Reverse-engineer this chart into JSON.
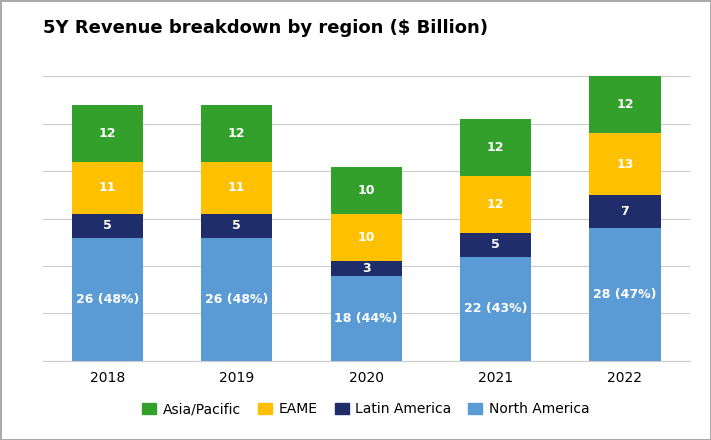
{
  "title": "5Y Revenue breakdown by region ($ Billion)",
  "years": [
    "2018",
    "2019",
    "2020",
    "2021",
    "2022"
  ],
  "segments": {
    "North America": {
      "values": [
        26,
        26,
        18,
        22,
        28
      ],
      "labels": [
        "26 (48%)",
        "26 (48%)",
        "18 (44%)",
        "22 (43%)",
        "28 (47%)"
      ],
      "color": "#5B9BD5"
    },
    "Latin America": {
      "values": [
        5,
        5,
        3,
        5,
        7
      ],
      "labels": [
        "5",
        "5",
        "3",
        "5",
        "7"
      ],
      "color": "#1F2D6B"
    },
    "EAME": {
      "values": [
        11,
        11,
        10,
        12,
        13
      ],
      "labels": [
        "11",
        "11",
        "10",
        "12",
        "13"
      ],
      "color": "#FFC000"
    },
    "Asia/Pacific": {
      "values": [
        12,
        12,
        10,
        12,
        12
      ],
      "labels": [
        "12",
        "12",
        "10",
        "12",
        "12"
      ],
      "color": "#33A02C"
    }
  },
  "legend_order": [
    "Asia/Pacific",
    "EAME",
    "Latin America",
    "North America"
  ],
  "bar_width": 0.55,
  "ylim": [
    0,
    65
  ],
  "background_color": "#FFFFFF",
  "grid_color": "#CCCCCC",
  "title_fontsize": 13,
  "label_fontsize": 9,
  "tick_fontsize": 10,
  "legend_fontsize": 10
}
